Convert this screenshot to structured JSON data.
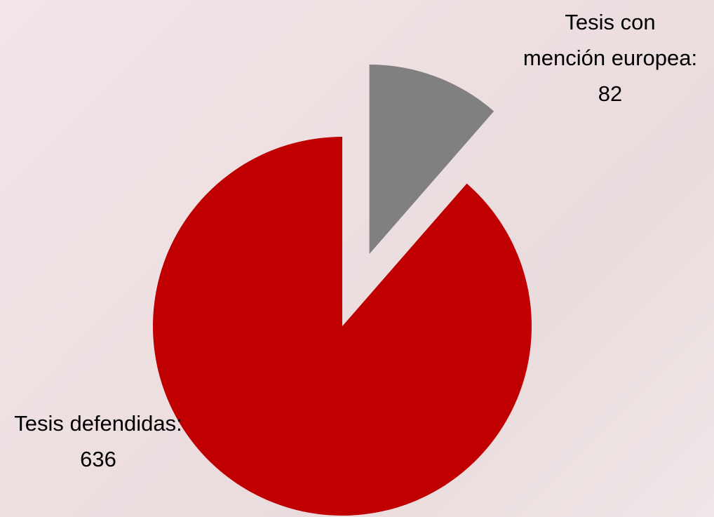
{
  "chart_data": {
    "type": "pie",
    "values": [
      82,
      636
    ],
    "value_labels": [
      "Tesis con mención europea: 82",
      "Tesis defendidas: 636"
    ],
    "colors": [
      "#808080",
      "#c00000"
    ]
  }
}
